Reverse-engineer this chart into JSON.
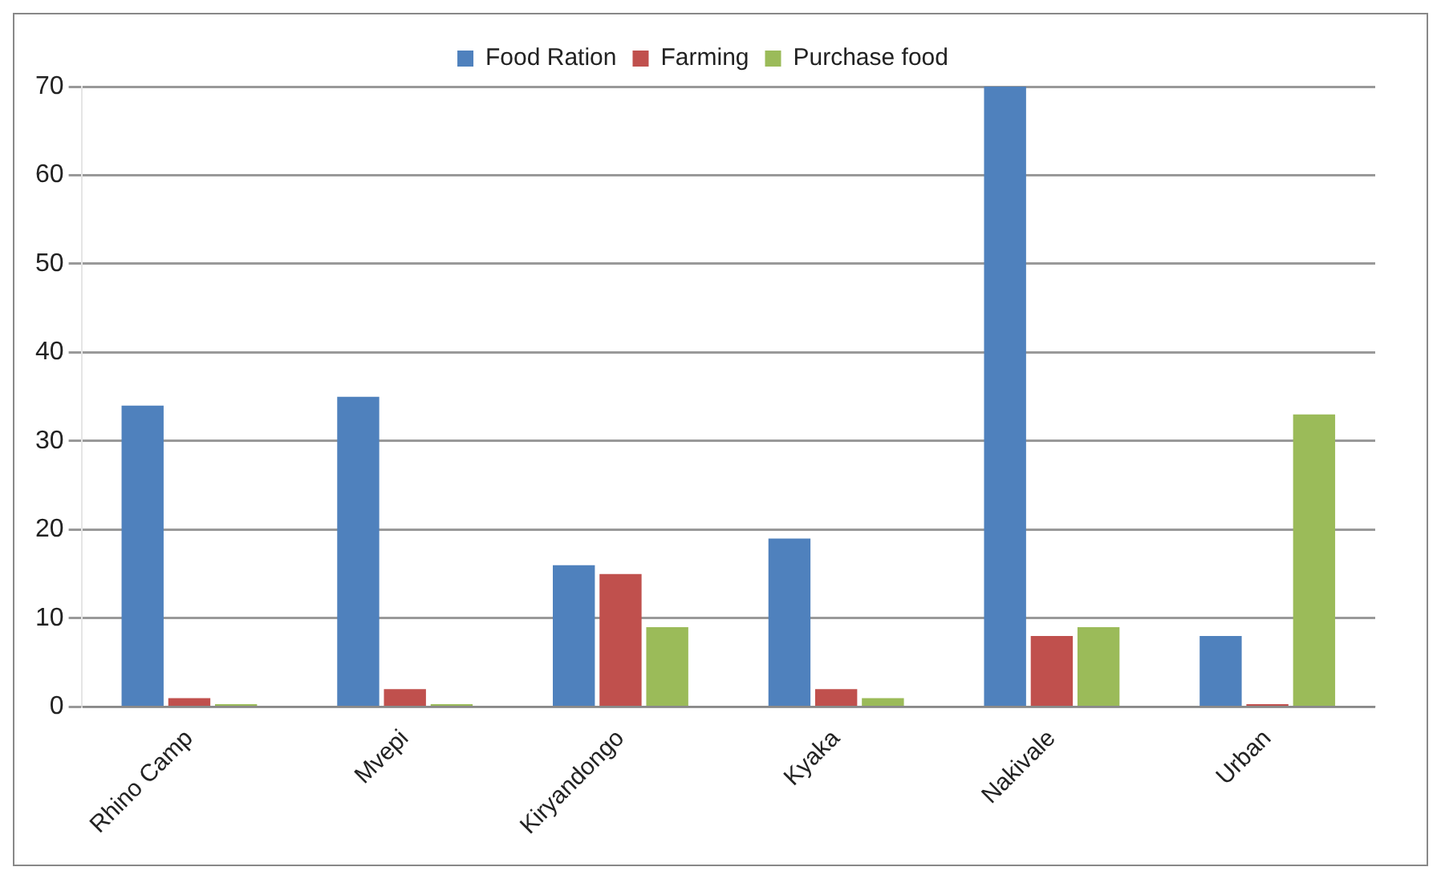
{
  "chart_data": {
    "type": "bar",
    "categories": [
      "Rhino Camp",
      "Mvepi",
      "Kiryandongo",
      "Kyaka",
      "Nakivale",
      "Urban"
    ],
    "series": [
      {
        "name": "Food Ration",
        "color": "#4f81bd",
        "values": [
          34,
          35,
          16,
          19,
          70,
          8
        ]
      },
      {
        "name": "Farming",
        "color": "#c0504d",
        "values": [
          1,
          2,
          15,
          2,
          8,
          0.3
        ]
      },
      {
        "name": "Purchase food",
        "color": "#9bbb59",
        "values": [
          0.3,
          0.3,
          9,
          1,
          9,
          33
        ]
      }
    ],
    "ylim": [
      0,
      70
    ],
    "yticks": [
      0,
      10,
      20,
      30,
      40,
      50,
      60,
      70
    ],
    "grid": "y",
    "legend": "top"
  }
}
